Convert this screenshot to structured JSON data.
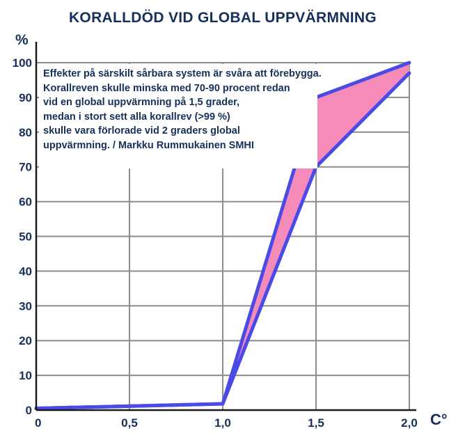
{
  "chart_data": {
    "type": "area",
    "title": "KORALLDÖD VID GLOBAL UPPVÄRMNING",
    "ylabel": "%",
    "xlabel": "C°",
    "x": [
      0,
      1,
      1.5,
      2
    ],
    "xticks": [
      "0",
      "0,5",
      "1,0",
      "1,5",
      "2,0"
    ],
    "yticks": [
      "0",
      "10",
      "20",
      "30",
      "40",
      "50",
      "60",
      "70",
      "80",
      "90",
      "100"
    ],
    "xlim": [
      0,
      2
    ],
    "ylim": [
      0,
      100
    ],
    "grid": true,
    "series": [
      {
        "values": [
          0.5,
          1.8,
          90,
          100
        ]
      },
      {
        "values": [
          0.5,
          1.8,
          70,
          97
        ]
      }
    ],
    "fill_between": true,
    "colors": {
      "line": "#4a4ae6",
      "fill": "#f48bb8",
      "text": "#16305a",
      "grid": "#8c8c8c"
    },
    "annotation": [
      "Effekter på särskilt sårbara system är svåra att förebygga.",
      "Korallreven skulle minska med 70-90 procent redan",
      "vid en global uppvärmning på 1,5 grader,",
      "medan i stort sett alla korallrev (>99 %)",
      "skulle vara förlorade vid 2 graders global",
      "uppvärmning. / Markku Rummukainen SMHI"
    ]
  }
}
